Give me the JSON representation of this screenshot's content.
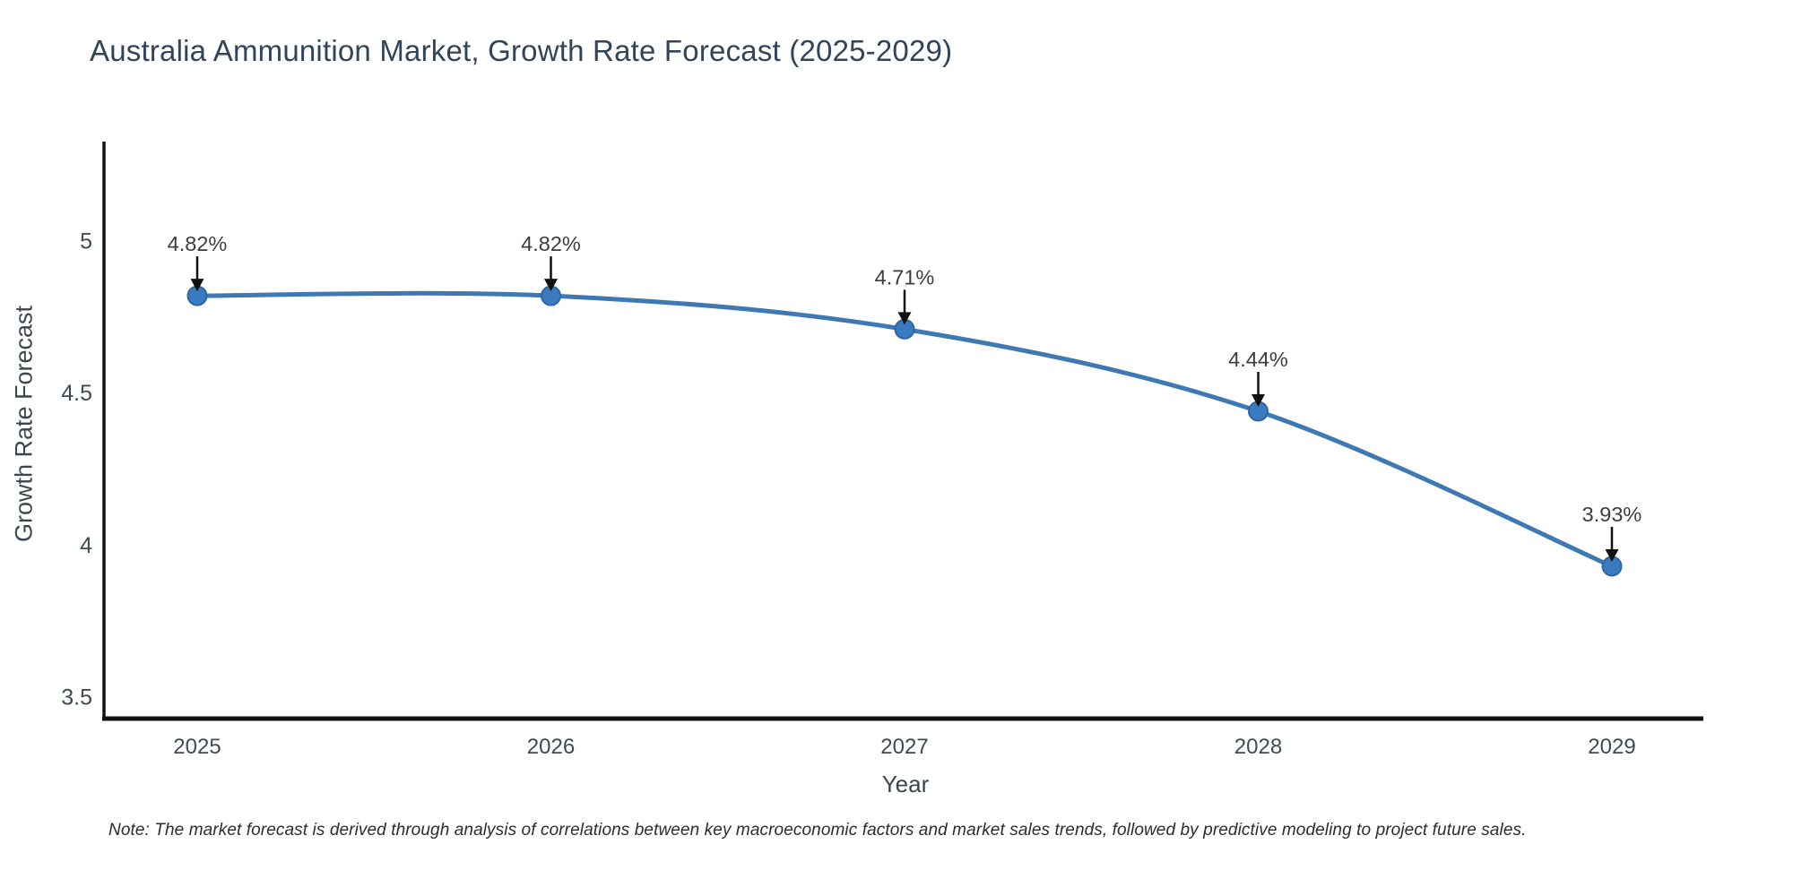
{
  "title": "Australia Ammunition Market, Growth Rate Forecast (2025-2029)",
  "note": "Note: The market forecast is derived through analysis of correlations between key macroeconomic factors and market sales trends, followed by predictive modeling to project future sales.",
  "chart_data": {
    "type": "line",
    "title": "Australia Ammunition Market, Growth Rate Forecast (2025-2029)",
    "x": [
      "2025",
      "2026",
      "2027",
      "2028",
      "2029"
    ],
    "values": [
      4.82,
      4.82,
      4.71,
      4.44,
      3.93
    ],
    "point_labels": [
      "4.82%",
      "4.82%",
      "4.71%",
      "4.44%",
      "3.93%"
    ],
    "xlabel": "Year",
    "ylabel": "Growth Rate Forecast",
    "yticks": [
      "3.5",
      "4",
      "4.5",
      "5"
    ],
    "ytick_values": [
      3.5,
      4,
      4.5,
      5
    ],
    "ylim": [
      3.43,
      5.37
    ],
    "curve": "spline",
    "grid": false,
    "legend": "none",
    "line_color": "#3e79b4",
    "marker_color": "#3a7abe",
    "marker_edge_color": "#2f66a2",
    "annotation_arrow_color": "#111111"
  },
  "colors": {
    "background": "#ffffff",
    "title": "#31455a",
    "tick": "#3f4a55",
    "axis": "#121212",
    "annotation": "#3d3d3d",
    "axis-label": "#3c4650",
    "note": "#2d2d2d"
  }
}
